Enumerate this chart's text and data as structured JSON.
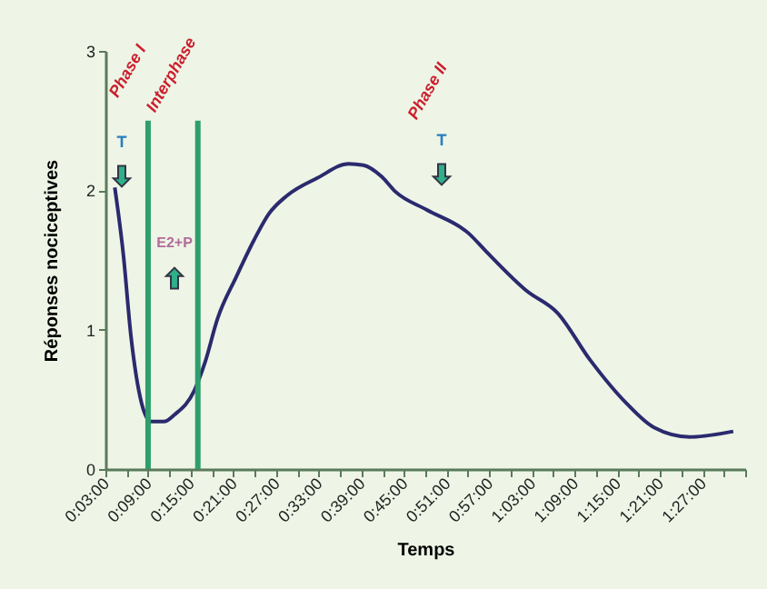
{
  "chart_data": {
    "type": "line",
    "xlabel": "Temps",
    "ylabel": "Réponses nociceptives",
    "series": [
      {
        "color": "#2b2a6e",
        "x": [
          0.072,
          0.092,
          0.11,
          0.135,
          0.157,
          0.187,
          0.212,
          0.258,
          0.283,
          0.313,
          0.357,
          0.398,
          0.433,
          0.475,
          0.548,
          0.62,
          0.655,
          0.697,
          0.73,
          0.803,
          0.902,
          0.943,
          1.037,
          1.11,
          1.187,
          1.272,
          1.335,
          1.42,
          1.522
        ],
        "values": [
          2.02,
          1.54,
          0.95,
          0.47,
          0.34,
          0.34,
          0.39,
          0.56,
          0.76,
          1.08,
          1.38,
          1.64,
          1.83,
          1.96,
          2.09,
          2.19,
          2.18,
          2.1,
          1.99,
          1.86,
          1.69,
          1.56,
          1.28,
          1.12,
          0.78,
          0.47,
          0.3,
          0.23,
          0.27
        ]
      }
    ],
    "xlim": [
      0.05,
      1.55
    ],
    "xticks": [
      {
        "value": 0.05,
        "label": "0:03:00"
      },
      {
        "value": 0.1,
        "label": null
      },
      {
        "value": 0.15,
        "label": "0:09:00"
      },
      {
        "value": 0.2,
        "label": null
      },
      {
        "value": 0.25,
        "label": "0:15:00"
      },
      {
        "value": 0.3,
        "label": null
      },
      {
        "value": 0.35,
        "label": "0:21:00"
      },
      {
        "value": 0.4,
        "label": null
      },
      {
        "value": 0.45,
        "label": "0:27:00"
      },
      {
        "value": 0.5,
        "label": null
      },
      {
        "value": 0.55,
        "label": "0:33:00"
      },
      {
        "value": 0.6,
        "label": null
      },
      {
        "value": 0.65,
        "label": "0:39:00"
      },
      {
        "value": 0.7,
        "label": null
      },
      {
        "value": 0.75,
        "label": "0:45:00"
      },
      {
        "value": 0.8,
        "label": null
      },
      {
        "value": 0.85,
        "label": "0:51:00"
      },
      {
        "value": 0.9,
        "label": null
      },
      {
        "value": 0.95,
        "label": "0:57:00"
      },
      {
        "value": 1.0,
        "label": null
      },
      {
        "value": 1.05,
        "label": "1:03:00"
      },
      {
        "value": 1.1,
        "label": null
      },
      {
        "value": 1.15,
        "label": "1:09:00"
      },
      {
        "value": 1.2,
        "label": null
      },
      {
        "value": 1.25,
        "label": "1:15:00"
      },
      {
        "value": 1.3,
        "label": null
      },
      {
        "value": 1.35,
        "label": "1:21:00"
      },
      {
        "value": 1.4,
        "label": null
      },
      {
        "value": 1.45,
        "label": "1:27:00"
      },
      {
        "value": 1.5,
        "label": null
      },
      {
        "value": 1.55,
        "label": null
      }
    ],
    "ylim": [
      0,
      3
    ],
    "yticks": [
      0,
      1,
      2,
      3
    ],
    "grid": false,
    "marker": "none",
    "line_style": "solid",
    "ref_lines": [
      {
        "axis": "x",
        "value": 0.15,
        "color": "#2e9e6a"
      },
      {
        "axis": "x",
        "value": 0.2667,
        "color": "#2e9e6a"
      }
    ],
    "annotations": [
      "Phase I",
      "Interphase",
      "Phase II",
      "T",
      "E2+P",
      "T"
    ]
  }
}
